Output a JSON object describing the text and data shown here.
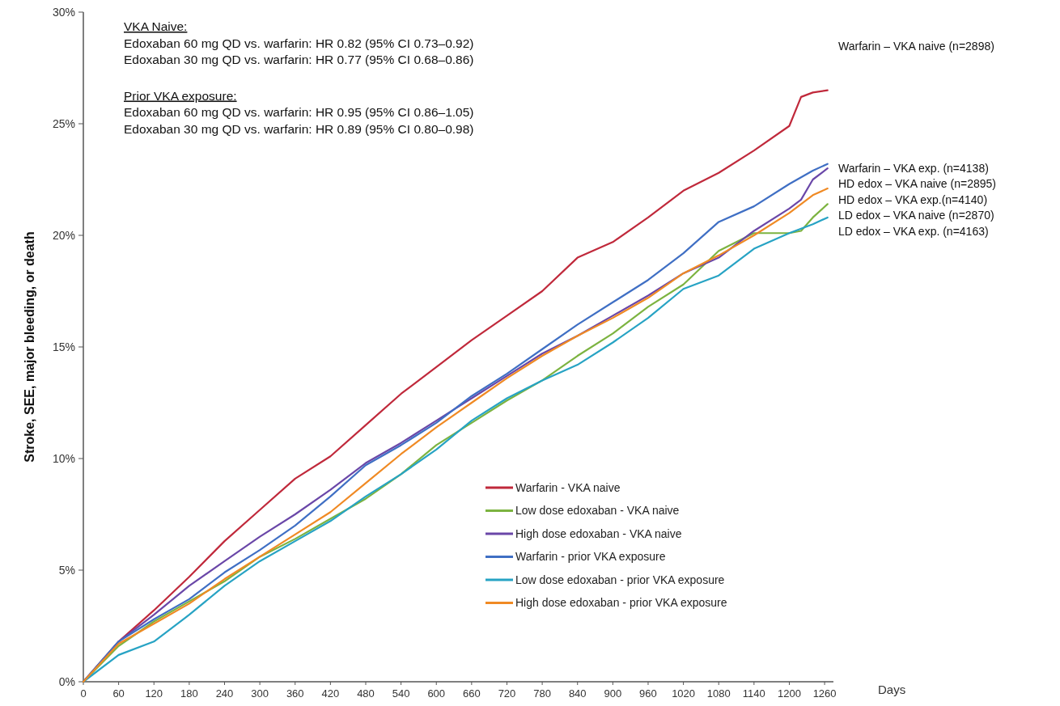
{
  "chart_data": {
    "type": "line",
    "ylabel": "Stroke, SEE, major bleeding, or death",
    "xlabel": "Days",
    "xlim": [
      0,
      1275
    ],
    "ylim": [
      0,
      30
    ],
    "xticks": [
      0,
      60,
      120,
      180,
      240,
      300,
      360,
      420,
      480,
      540,
      600,
      660,
      720,
      780,
      840,
      900,
      960,
      1020,
      1080,
      1140,
      1200,
      1260
    ],
    "yticks": [
      {
        "value": 0,
        "label": "0%"
      },
      {
        "value": 5,
        "label": "5%"
      },
      {
        "value": 10,
        "label": "10%"
      },
      {
        "value": 15,
        "label": "15%"
      },
      {
        "value": 20,
        "label": "20%"
      },
      {
        "value": 25,
        "label": "25%"
      },
      {
        "value": 30,
        "label": "30%"
      }
    ],
    "x": [
      0,
      60,
      120,
      180,
      240,
      300,
      360,
      420,
      480,
      540,
      600,
      660,
      720,
      780,
      840,
      900,
      960,
      1020,
      1080,
      1140,
      1200,
      1220,
      1240,
      1265
    ],
    "series": [
      {
        "name": "Warfarin - VKA naive",
        "color": "#c0293b",
        "values": [
          0,
          1.8,
          3.2,
          4.7,
          6.3,
          7.7,
          9.1,
          10.1,
          11.5,
          12.9,
          14.1,
          15.3,
          16.4,
          17.5,
          19.0,
          19.7,
          20.8,
          22.0,
          22.8,
          23.8,
          24.9,
          26.2,
          26.4,
          26.5
        ]
      },
      {
        "name": "Low dose edoxaban - VKA naive",
        "color": "#7cb340",
        "values": [
          0,
          1.6,
          2.7,
          3.6,
          4.5,
          5.6,
          6.4,
          7.3,
          8.2,
          9.3,
          10.6,
          11.6,
          12.6,
          13.5,
          14.6,
          15.6,
          16.8,
          17.8,
          19.3,
          20.1,
          20.1,
          20.2,
          20.8,
          21.4
        ]
      },
      {
        "name": "High dose edoxaban - VKA naive",
        "color": "#6a47a8",
        "values": [
          0,
          1.8,
          3.0,
          4.3,
          5.4,
          6.5,
          7.5,
          8.6,
          9.8,
          10.7,
          11.7,
          12.7,
          13.7,
          14.7,
          15.5,
          16.4,
          17.3,
          18.3,
          19.0,
          20.2,
          21.2,
          21.6,
          22.5,
          23.0
        ]
      },
      {
        "name": "Warfarin - prior VKA exposure",
        "color": "#3f6fc4",
        "values": [
          0,
          1.8,
          2.8,
          3.7,
          4.9,
          5.9,
          7.0,
          8.3,
          9.7,
          10.6,
          11.6,
          12.8,
          13.8,
          14.9,
          16.0,
          17.0,
          18.0,
          19.2,
          20.6,
          21.3,
          22.3,
          22.6,
          22.9,
          23.2
        ]
      },
      {
        "name": "Low dose edoxaban - prior VKA exposure",
        "color": "#27a3c4",
        "values": [
          0,
          1.2,
          1.8,
          3.0,
          4.3,
          5.4,
          6.3,
          7.2,
          8.3,
          9.3,
          10.4,
          11.7,
          12.7,
          13.5,
          14.2,
          15.2,
          16.3,
          17.6,
          18.2,
          19.4,
          20.1,
          20.3,
          20.5,
          20.8
        ]
      },
      {
        "name": "High dose edoxaban - prior VKA exposure",
        "color": "#f08a24",
        "values": [
          0,
          1.7,
          2.6,
          3.5,
          4.6,
          5.6,
          6.6,
          7.6,
          8.9,
          10.2,
          11.4,
          12.5,
          13.6,
          14.6,
          15.5,
          16.3,
          17.2,
          18.3,
          19.1,
          20.0,
          21.0,
          21.4,
          21.8,
          22.1
        ]
      }
    ],
    "annotations": [
      "VKA Naive:",
      "Edoxaban 60 mg QD vs. warfarin: HR 0.82 (95% CI 0.73–0.92)",
      "Edoxaban 30 mg QD vs. warfarin: HR 0.77 (95% CI 0.68–0.86)",
      "Prior VKA exposure:",
      "Edoxaban 60 mg QD vs. warfarin: HR 0.95 (95% CI 0.86–1.05)",
      "Edoxaban 30 mg QD vs. warfarin: HR 0.89 (95% CI 0.80–0.98)",
      "Warfarin – VKA naive (n=2898)",
      "Warfarin – VKA exp. (n=4138)",
      "HD edox – VKA naive (n=2895)",
      "HD edox – VKA exp.(n=4140)",
      "LD edox – VKA naive (n=2870)",
      "LD edox – VKA exp. (n=4163)"
    ],
    "legend": "bottom right",
    "line_style": "solid",
    "marker": "none"
  }
}
